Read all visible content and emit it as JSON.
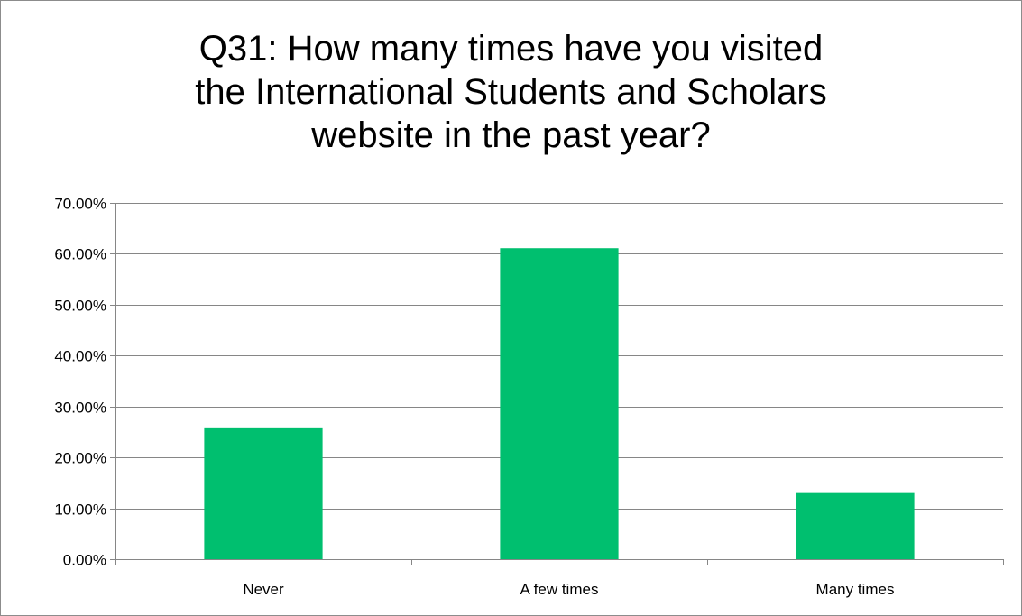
{
  "chart_data": {
    "type": "bar",
    "title_lines": [
      "Q31: How many times have you visited",
      "the International Students and Scholars",
      "website in the past year?"
    ],
    "categories": [
      "Never",
      "A few times",
      "Many times"
    ],
    "values": [
      25.9,
      61.1,
      13.0
    ],
    "value_unit": "%",
    "ylim": [
      0,
      70
    ],
    "yticks": [
      0,
      10,
      20,
      30,
      40,
      50,
      60,
      70
    ],
    "ytick_labels": [
      "0.00%",
      "10.00%",
      "20.00%",
      "30.00%",
      "40.00%",
      "50.00%",
      "60.00%",
      "70.00%"
    ],
    "grid": true,
    "legend": "none",
    "bar_color": "#00BF6F",
    "grid_color": "#868686"
  }
}
